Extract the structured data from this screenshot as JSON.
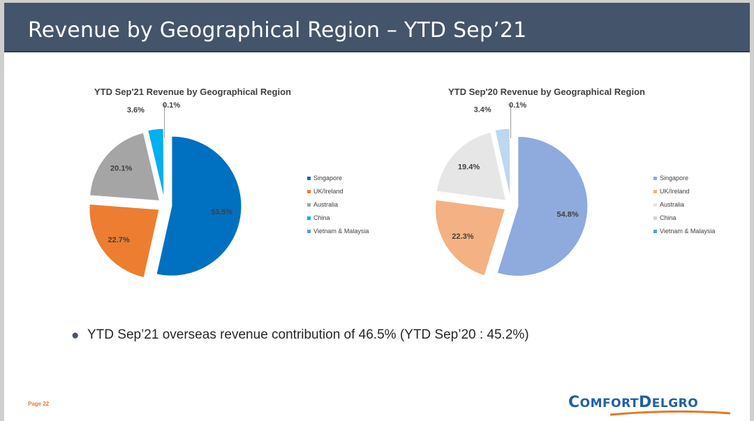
{
  "title": "Revenue by Geographical Region – YTD Sep’21",
  "legend_labels": [
    "Singapore",
    "UK/Ireland",
    "Australia",
    "China",
    "Vietnam & Malaysia"
  ],
  "chart_data": [
    {
      "type": "pie",
      "title": "YTD Sep'21 Revenue by Geographical Region",
      "categories": [
        "Singapore",
        "UK/Ireland",
        "Australia",
        "China",
        "Vietnam & Malaysia"
      ],
      "values": [
        53.5,
        22.7,
        20.1,
        3.6,
        0.1
      ],
      "labels": [
        "53.5%",
        "22.7%",
        "20.1%",
        "3.6%",
        "0.1%"
      ],
      "colors": [
        "#0070c0",
        "#ed7d31",
        "#a5a5a5",
        "#00b0f0",
        "#5b9bd5"
      ],
      "legend": "right"
    },
    {
      "type": "pie",
      "title": "YTD Sep'20 Revenue by Geographical Region",
      "categories": [
        "Singapore",
        "UK/Ireland",
        "Australia",
        "China",
        "Vietnam & Malaysia"
      ],
      "values": [
        54.8,
        22.3,
        19.4,
        3.4,
        0.1
      ],
      "labels": [
        "54.8%",
        "22.3%",
        "19.4%",
        "3.4%",
        "0.1%"
      ],
      "colors": [
        "#8faadc",
        "#f4b183",
        "#e7e6e6",
        "#bdd7ee",
        "#5b9bd5"
      ],
      "legend": "right"
    }
  ],
  "bullet_text": "YTD Sep’21 overseas revenue contribution of 46.5% (YTD Sep’20 : 45.2%)",
  "page_label": "Page 22",
  "logo": {
    "text_big_1": "C",
    "text_small_1": "OMFORT",
    "text_big_2": "D",
    "text_small_2": "ELGRO",
    "text_color": "#1f5fa8",
    "swoosh_color": "#e37a2a"
  }
}
